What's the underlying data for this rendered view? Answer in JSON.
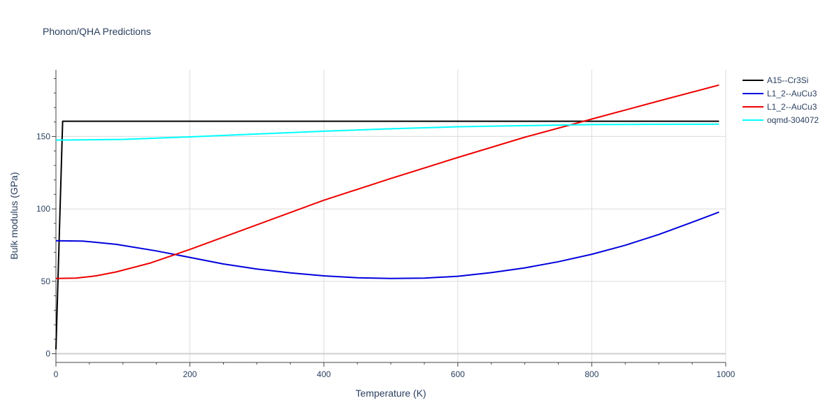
{
  "chart_data": {
    "type": "line",
    "title": "Phonon/QHA Predictions",
    "xlabel": "Temperature (K)",
    "ylabel": "Bulk modulus (GPa)",
    "xlim": [
      0,
      1000
    ],
    "ylim": [
      -6,
      196
    ],
    "xticks": [
      0,
      200,
      400,
      600,
      800,
      1000
    ],
    "yticks": [
      0,
      50,
      100,
      150
    ],
    "grid": true,
    "legend_position": "top-right",
    "series": [
      {
        "name": "A15--Cr3Si",
        "color": "#000000",
        "x": [
          0,
          10,
          990
        ],
        "y": [
          3,
          160.5,
          160.5
        ]
      },
      {
        "name": "L1_2--AuCu3",
        "color": "#0000dd",
        "x": [
          0,
          40,
          90,
          150,
          200,
          250,
          300,
          350,
          400,
          450,
          500,
          550,
          600,
          650,
          700,
          750,
          800,
          850,
          900,
          950,
          990
        ],
        "y": [
          78,
          77.8,
          75.5,
          71,
          66.5,
          62,
          58.5,
          55.8,
          53.8,
          52.5,
          52,
          52.2,
          53.5,
          56,
          59.3,
          63.5,
          68.7,
          74.9,
          82.3,
          90.8,
          97.8
        ]
      },
      {
        "name": "L1_2--AuCu3",
        "color": "#ee0000",
        "x": [
          0,
          30,
          60,
          90,
          140,
          200,
          300,
          400,
          500,
          600,
          700,
          800,
          900,
          990
        ],
        "y": [
          52,
          52.2,
          53.8,
          56.5,
          62.5,
          72,
          89,
          106,
          121,
          135.5,
          149.5,
          162,
          174.5,
          185.5
        ]
      },
      {
        "name": "oqmd-304072",
        "color": "#00ffff",
        "x": [
          0,
          100,
          200,
          300,
          400,
          500,
          600,
          700,
          800,
          900,
          990
        ],
        "y": [
          147.5,
          148,
          149.7,
          151.7,
          153.6,
          155.3,
          156.7,
          157.5,
          158.2,
          158.4,
          158.5
        ]
      }
    ]
  }
}
